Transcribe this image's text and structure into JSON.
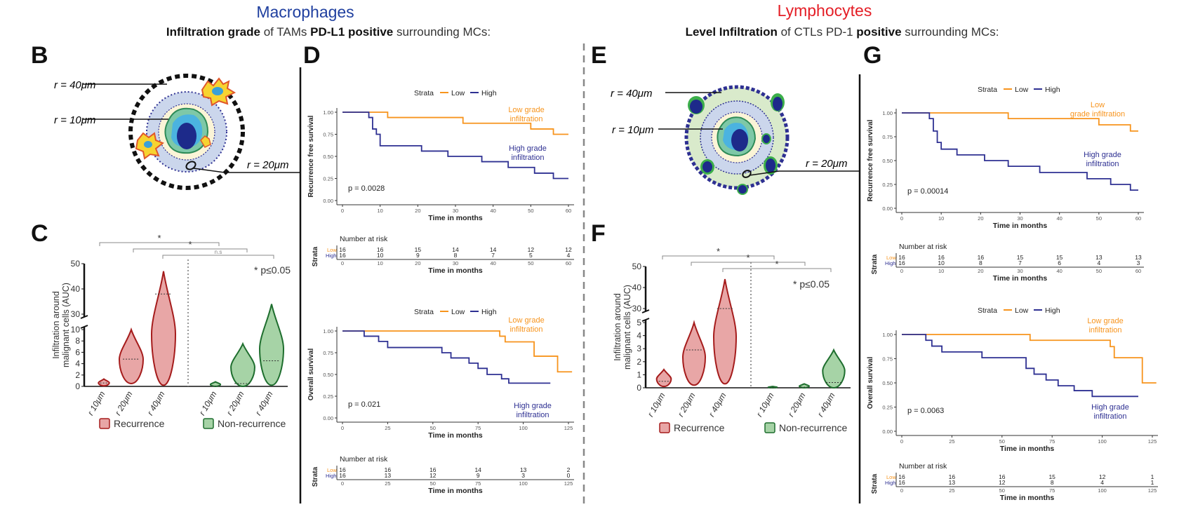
{
  "headers": {
    "macrophages": {
      "title": "Macrophages",
      "subtitle_bold1": "Infiltration grade",
      "subtitle_mid": " of TAMs ",
      "subtitle_bold2": "PD-L1 positive",
      "subtitle_end": " surrounding MCs:"
    },
    "lymphocytes": {
      "title": "Lymphocytes",
      "subtitle_bold1": "Level Infiltration",
      "subtitle_mid": " of CTLs PD-1 ",
      "subtitle_bold2": "positive",
      "subtitle_end": " surrounding MCs:"
    }
  },
  "panel_labels": {
    "b": "B",
    "c": "C",
    "d": "D",
    "e": "E",
    "f": "F",
    "g": "G"
  },
  "diagram_labels": {
    "r40": "r = 40μm",
    "r10": "r = 10μm",
    "r20": "r = 20μm"
  },
  "colors": {
    "low": "#F7941D",
    "high": "#2E3092",
    "recurrence_fill": "#E8A6A6",
    "recurrence_stroke": "#A51C1C",
    "nonrec_fill": "#A6D3A6",
    "nonrec_stroke": "#1E6E2E",
    "mac_title": "#1F3F9F",
    "lym_title": "#E41E26"
  },
  "chart_data": [
    {
      "panel": "C",
      "type": "violin",
      "ylabel": "Infiltration around malignant cells (AUC)",
      "lower_ticks": [
        "0",
        "2",
        "4",
        "6",
        "8",
        "10"
      ],
      "upper_ticks": [
        "30",
        "40",
        "50"
      ],
      "categories": [
        "r 10μm",
        "r 20μm",
        "r 40μm",
        "r 10μm",
        "r 20μm",
        "r 40μm"
      ],
      "groups": [
        {
          "name": "Recurrence",
          "values": [
            {
              "min": 0.1,
              "median": 0.6,
              "max": 1.3
            },
            {
              "min": 0.5,
              "median": 4.8,
              "max": 10
            },
            {
              "min": 0.2,
              "median": 38,
              "max": 47
            }
          ]
        },
        {
          "name": "Non-recurrence",
          "values": [
            {
              "min": 0,
              "median": 0.05,
              "max": 0.8
            },
            {
              "min": 0,
              "median": 0.5,
              "max": 7.5
            },
            {
              "min": 0.2,
              "median": 4.5,
              "max": 34
            }
          ]
        }
      ],
      "brackets": [
        "*",
        "*",
        "n.s"
      ],
      "annotation": "* p≤0.05"
    },
    {
      "panel": "D-top",
      "type": "line",
      "ylabel": "Recurrence free survival",
      "xlabel": "Time in months",
      "x_ticks": [
        "0",
        "10",
        "20",
        "30",
        "40",
        "50",
        "60"
      ],
      "y_ticks": [
        "0.00",
        "0.25",
        "0.50",
        "0.75",
        "1.00"
      ],
      "xlim": [
        0,
        60
      ],
      "ylim": [
        0,
        1
      ],
      "legend_title": "Strata",
      "series": [
        {
          "name": "Low",
          "label1": "Low grade",
          "label2": "infiltration",
          "points": [
            [
              0,
              1
            ],
            [
              9,
              1
            ],
            [
              12,
              0.94
            ],
            [
              28,
              0.94
            ],
            [
              32,
              0.875
            ],
            [
              45,
              0.875
            ],
            [
              50,
              0.81
            ],
            [
              55,
              0.81
            ],
            [
              56,
              0.75
            ],
            [
              60,
              0.75
            ]
          ]
        },
        {
          "name": "High",
          "label1": "High grade",
          "label2": "infiltration",
          "points": [
            [
              0,
              1
            ],
            [
              6,
              1
            ],
            [
              7,
              0.94
            ],
            [
              8,
              0.81
            ],
            [
              9,
              0.75
            ],
            [
              10,
              0.62
            ],
            [
              20,
              0.62
            ],
            [
              21,
              0.56
            ],
            [
              27,
              0.56
            ],
            [
              28,
              0.5
            ],
            [
              36,
              0.5
            ],
            [
              37,
              0.44
            ],
            [
              43,
              0.44
            ],
            [
              44,
              0.375
            ],
            [
              50,
              0.375
            ],
            [
              51,
              0.31
            ],
            [
              55,
              0.31
            ],
            [
              56,
              0.25
            ],
            [
              60,
              0.25
            ]
          ]
        }
      ],
      "pvalue": "p = 0.0028",
      "risk_title": "Number at risk",
      "risk_label": "Strata",
      "risk": {
        "Low": [
          "16",
          "16",
          "15",
          "14",
          "14",
          "12",
          "12"
        ],
        "High": [
          "16",
          "10",
          "9",
          "8",
          "7",
          "5",
          "4"
        ]
      }
    },
    {
      "panel": "D-bottom",
      "type": "line",
      "ylabel": "Overall survival",
      "xlabel": "Time in months",
      "x_ticks": [
        "0",
        "25",
        "50",
        "75",
        "100",
        "125"
      ],
      "y_ticks": [
        "0.00",
        "0.25",
        "0.50",
        "0.75",
        "1.00"
      ],
      "xlim": [
        0,
        125
      ],
      "ylim": [
        0,
        1
      ],
      "legend_title": "Strata",
      "series": [
        {
          "name": "Low",
          "label1": "Low grade",
          "label2": "infiltration",
          "points": [
            [
              0,
              1
            ],
            [
              85,
              1
            ],
            [
              87,
              0.94
            ],
            [
              90,
              0.875
            ],
            [
              104,
              0.875
            ],
            [
              106,
              0.71
            ],
            [
              117,
              0.71
            ],
            [
              119,
              0.53
            ],
            [
              127,
              0.53
            ]
          ]
        },
        {
          "name": "High",
          "label1": "High grade",
          "label2": "infiltration",
          "points": [
            [
              0,
              1
            ],
            [
              10,
              1
            ],
            [
              12,
              0.94
            ],
            [
              20,
              0.88
            ],
            [
              25,
              0.81
            ],
            [
              50,
              0.81
            ],
            [
              55,
              0.75
            ],
            [
              60,
              0.69
            ],
            [
              70,
              0.63
            ],
            [
              75,
              0.57
            ],
            [
              80,
              0.5
            ],
            [
              88,
              0.45
            ],
            [
              92,
              0.4
            ],
            [
              115,
              0.4
            ]
          ]
        }
      ],
      "pvalue": "p = 0.021",
      "risk_title": "Number at risk",
      "risk_label": "Strata",
      "risk": {
        "Low": [
          "16",
          "16",
          "16",
          "14",
          "13",
          "2"
        ],
        "High": [
          "16",
          "13",
          "12",
          "9",
          "3",
          "0"
        ]
      }
    },
    {
      "panel": "F",
      "type": "violin",
      "ylabel": "Infiltration around malignant cells (AUC)",
      "lower_ticks": [
        "0",
        "1",
        "2",
        "3",
        "4",
        "5"
      ],
      "upper_ticks": [
        "30",
        "40",
        "50"
      ],
      "categories": [
        "r 10μm",
        "r 20μm",
        "r 40μm",
        "r 10μm",
        "r 20μm",
        "r 40μm"
      ],
      "groups": [
        {
          "name": "Recurrence",
          "values": [
            {
              "min": 0.1,
              "median": 0.5,
              "max": 1.4
            },
            {
              "min": 0.2,
              "median": 2.9,
              "max": 5
            },
            {
              "min": 0.3,
              "median": 30,
              "max": 44
            }
          ]
        },
        {
          "name": "Non-recurrence",
          "values": [
            {
              "min": 0,
              "median": 0,
              "max": 0.1
            },
            {
              "min": 0,
              "median": 0.05,
              "max": 0.3
            },
            {
              "min": 0,
              "median": 0.4,
              "max": 2.9
            }
          ]
        }
      ],
      "brackets": [
        "*",
        "*",
        "*"
      ],
      "annotation": "* p≤0.05"
    },
    {
      "panel": "G-top",
      "type": "line",
      "ylabel": "Recurrence free survival",
      "xlabel": "Time in months",
      "x_ticks": [
        "0",
        "10",
        "20",
        "30",
        "40",
        "50",
        "60"
      ],
      "y_ticks": [
        "0.00",
        "0.25",
        "0.50",
        "0.75",
        "1.00"
      ],
      "xlim": [
        0,
        60
      ],
      "ylim": [
        0,
        1
      ],
      "legend_title": "Strata",
      "series": [
        {
          "name": "Low",
          "label1": "Low",
          "label2": "grade infiltration",
          "points": [
            [
              0,
              1
            ],
            [
              26,
              1
            ],
            [
              27,
              0.94
            ],
            [
              49,
              0.94
            ],
            [
              50,
              0.875
            ],
            [
              57,
              0.875
            ],
            [
              58,
              0.81
            ],
            [
              60,
              0.81
            ]
          ]
        },
        {
          "name": "High",
          "label1": "High grade",
          "label2": "infiltration",
          "points": [
            [
              0,
              1
            ],
            [
              6,
              1
            ],
            [
              7,
              0.94
            ],
            [
              8,
              0.81
            ],
            [
              9,
              0.69
            ],
            [
              10,
              0.62
            ],
            [
              13,
              0.62
            ],
            [
              14,
              0.56
            ],
            [
              20,
              0.56
            ],
            [
              21,
              0.5
            ],
            [
              26,
              0.5
            ],
            [
              27,
              0.44
            ],
            [
              34,
              0.44
            ],
            [
              35,
              0.375
            ],
            [
              46,
              0.375
            ],
            [
              47,
              0.31
            ],
            [
              52,
              0.31
            ],
            [
              53,
              0.25
            ],
            [
              57,
              0.25
            ],
            [
              58,
              0.19
            ],
            [
              60,
              0.19
            ]
          ]
        }
      ],
      "pvalue": "p = 0.00014",
      "risk_title": "Number at risk",
      "risk_label": "Strata",
      "risk": {
        "Low": [
          "16",
          "16",
          "16",
          "15",
          "15",
          "13",
          "13"
        ],
        "High": [
          "16",
          "10",
          "8",
          "7",
          "6",
          "4",
          "3"
        ]
      }
    },
    {
      "panel": "G-bottom",
      "type": "line",
      "ylabel": "Overall survival",
      "xlabel": "Time in months",
      "x_ticks": [
        "0",
        "25",
        "50",
        "75",
        "100",
        "125"
      ],
      "y_ticks": [
        "0.00",
        "0.25",
        "0.50",
        "0.75",
        "1.00"
      ],
      "xlim": [
        0,
        125
      ],
      "ylim": [
        0,
        1
      ],
      "legend_title": "Strata",
      "series": [
        {
          "name": "Low",
          "label1": "Low grade",
          "label2": "infiltration",
          "points": [
            [
              0,
              1
            ],
            [
              62,
              1
            ],
            [
              64,
              0.94
            ],
            [
              102,
              0.94
            ],
            [
              104,
              0.875
            ],
            [
              106,
              0.76
            ],
            [
              117,
              0.76
            ],
            [
              120,
              0.5
            ],
            [
              127,
              0.5
            ]
          ]
        },
        {
          "name": "High",
          "label1": "High grade",
          "label2": "infiltration",
          "points": [
            [
              0,
              1
            ],
            [
              10,
              1
            ],
            [
              12,
              0.94
            ],
            [
              15,
              0.88
            ],
            [
              20,
              0.82
            ],
            [
              38,
              0.82
            ],
            [
              40,
              0.76
            ],
            [
              60,
              0.76
            ],
            [
              62,
              0.65
            ],
            [
              66,
              0.59
            ],
            [
              72,
              0.53
            ],
            [
              78,
              0.47
            ],
            [
              86,
              0.42
            ],
            [
              95,
              0.36
            ],
            [
              118,
              0.36
            ]
          ]
        }
      ],
      "pvalue": "p = 0.0063",
      "risk_title": "Number at risk",
      "risk_label": "Strata",
      "risk": {
        "Low": [
          "16",
          "16",
          "16",
          "15",
          "12",
          "1"
        ],
        "High": [
          "16",
          "13",
          "12",
          "8",
          "4",
          "1"
        ]
      }
    }
  ]
}
